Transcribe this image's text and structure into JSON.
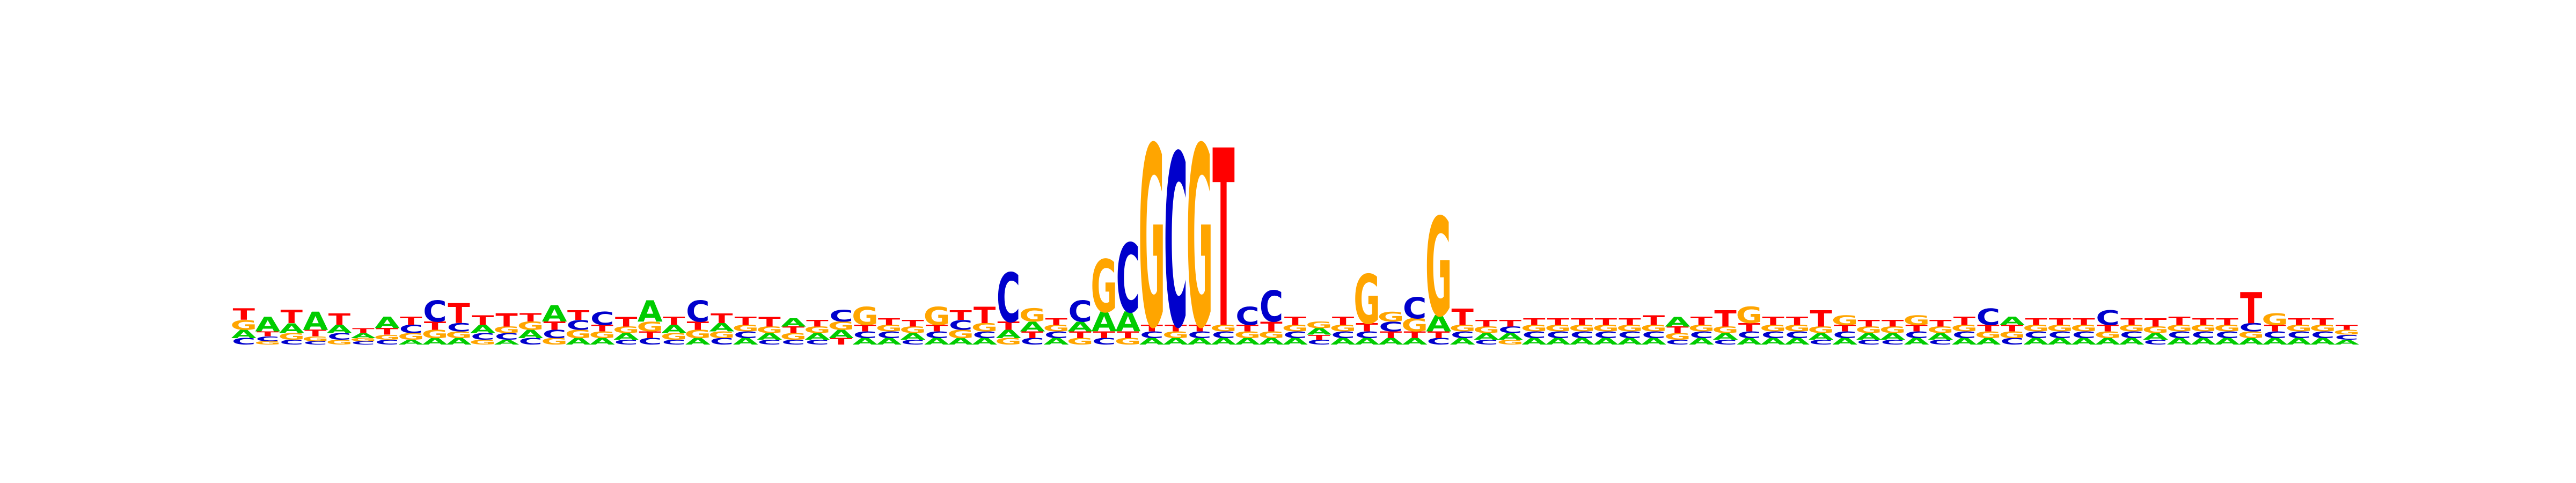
{
  "chart_data": {
    "type": "sequence-logo",
    "alphabet": [
      "A",
      "C",
      "G",
      "T"
    ],
    "colors": {
      "A": "#00cc00",
      "C": "#0000cc",
      "G": "#ffa500",
      "T": "#ff0000"
    },
    "y_unit": "bits",
    "ylim": [
      0,
      2
    ],
    "positions": [
      {
        "A": 0.05,
        "C": 0.04,
        "G": 0.06,
        "T": 0.07
      },
      {
        "A": 0.09,
        "C": 0.03,
        "G": 0.02,
        "T": 0.03
      },
      {
        "A": 0.06,
        "C": 0.03,
        "G": 0.04,
        "T": 0.08
      },
      {
        "A": 0.11,
        "C": 0.02,
        "G": 0.03,
        "T": 0.04
      },
      {
        "A": 0.05,
        "C": 0.04,
        "G": 0.03,
        "T": 0.07
      },
      {
        "A": 0.03,
        "C": 0.02,
        "G": 0.02,
        "T": 0.03
      },
      {
        "A": 0.07,
        "C": 0.03,
        "G": 0.03,
        "T": 0.04
      },
      {
        "A": 0.03,
        "C": 0.05,
        "G": 0.04,
        "T": 0.05
      },
      {
        "A": 0.04,
        "C": 0.13,
        "G": 0.05,
        "T": 0.05
      },
      {
        "A": 0.04,
        "C": 0.05,
        "G": 0.04,
        "T": 0.12
      },
      {
        "A": 0.05,
        "C": 0.04,
        "G": 0.03,
        "T": 0.06
      },
      {
        "A": 0.03,
        "C": 0.04,
        "G": 0.04,
        "T": 0.08
      },
      {
        "A": 0.05,
        "C": 0.04,
        "G": 0.05,
        "T": 0.05
      },
      {
        "A": 0.1,
        "C": 0.05,
        "G": 0.04,
        "T": 0.05
      },
      {
        "A": 0.04,
        "C": 0.06,
        "G": 0.05,
        "T": 0.06
      },
      {
        "A": 0.04,
        "C": 0.08,
        "G": 0.04,
        "T": 0.04
      },
      {
        "A": 0.04,
        "C": 0.03,
        "G": 0.04,
        "T": 0.06
      },
      {
        "A": 0.13,
        "C": 0.04,
        "G": 0.06,
        "T": 0.04
      },
      {
        "A": 0.05,
        "C": 0.03,
        "G": 0.04,
        "T": 0.05
      },
      {
        "A": 0.04,
        "C": 0.13,
        "G": 0.05,
        "T": 0.05
      },
      {
        "A": 0.05,
        "C": 0.04,
        "G": 0.04,
        "T": 0.06
      },
      {
        "A": 0.04,
        "C": 0.04,
        "G": 0.04,
        "T": 0.05
      },
      {
        "A": 0.04,
        "C": 0.03,
        "G": 0.04,
        "T": 0.06
      },
      {
        "A": 0.05,
        "C": 0.03,
        "G": 0.04,
        "T": 0.04
      },
      {
        "A": 0.04,
        "C": 0.03,
        "G": 0.04,
        "T": 0.04
      },
      {
        "A": 0.05,
        "C": 0.07,
        "G": 0.05,
        "T": 0.04
      },
      {
        "A": 0.04,
        "C": 0.04,
        "G": 0.11,
        "T": 0.04
      },
      {
        "A": 0.04,
        "C": 0.04,
        "G": 0.04,
        "T": 0.04
      },
      {
        "A": 0.04,
        "C": 0.03,
        "G": 0.04,
        "T": 0.04
      },
      {
        "A": 0.04,
        "C": 0.04,
        "G": 0.11,
        "T": 0.04
      },
      {
        "A": 0.04,
        "C": 0.06,
        "G": 0.05,
        "T": 0.06
      },
      {
        "A": 0.04,
        "C": 0.04,
        "G": 0.05,
        "T": 0.1
      },
      {
        "A": 0.05,
        "C": 0.3,
        "G": 0.04,
        "T": 0.05
      },
      {
        "A": 0.06,
        "C": 0.04,
        "G": 0.08,
        "T": 0.04
      },
      {
        "A": 0.04,
        "C": 0.04,
        "G": 0.04,
        "T": 0.04
      },
      {
        "A": 0.06,
        "C": 0.13,
        "G": 0.04,
        "T": 0.04
      },
      {
        "A": 0.12,
        "C": 0.04,
        "G": 0.32,
        "T": 0.04
      },
      {
        "A": 0.12,
        "C": 0.42,
        "G": 0.04,
        "T": 0.04
      },
      {
        "A": 0.04,
        "C": 0.04,
        "G": 1.1,
        "T": 0.04
      },
      {
        "A": 0.04,
        "C": 1.05,
        "G": 0.04,
        "T": 0.04
      },
      {
        "A": 0.04,
        "C": 0.04,
        "G": 1.1,
        "T": 0.04
      },
      {
        "A": 0.04,
        "C": 0.04,
        "G": 0.04,
        "T": 1.08
      },
      {
        "A": 0.04,
        "C": 0.11,
        "G": 0.04,
        "T": 0.04
      },
      {
        "A": 0.04,
        "C": 0.19,
        "G": 0.04,
        "T": 0.06
      },
      {
        "A": 0.04,
        "C": 0.04,
        "G": 0.04,
        "T": 0.05
      },
      {
        "A": 0.04,
        "C": 0.03,
        "G": 0.04,
        "T": 0.03
      },
      {
        "A": 0.04,
        "C": 0.04,
        "G": 0.04,
        "T": 0.05
      },
      {
        "A": 0.04,
        "C": 0.04,
        "G": 0.3,
        "T": 0.05
      },
      {
        "A": 0.04,
        "C": 0.06,
        "G": 0.06,
        "T": 0.04
      },
      {
        "A": 0.04,
        "C": 0.13,
        "G": 0.08,
        "T": 0.04
      },
      {
        "A": 0.1,
        "C": 0.04,
        "G": 0.6,
        "T": 0.04
      },
      {
        "A": 0.04,
        "C": 0.04,
        "G": 0.04,
        "T": 0.1
      },
      {
        "A": 0.04,
        "C": 0.03,
        "G": 0.04,
        "T": 0.04
      },
      {
        "A": 0.04,
        "C": 0.04,
        "G": 0.03,
        "T": 0.04
      },
      {
        "A": 0.04,
        "C": 0.04,
        "G": 0.04,
        "T": 0.04
      },
      {
        "A": 0.04,
        "C": 0.04,
        "G": 0.04,
        "T": 0.04
      },
      {
        "A": 0.04,
        "C": 0.04,
        "G": 0.04,
        "T": 0.04
      },
      {
        "A": 0.04,
        "C": 0.04,
        "G": 0.04,
        "T": 0.04
      },
      {
        "A": 0.04,
        "C": 0.04,
        "G": 0.04,
        "T": 0.04
      },
      {
        "A": 0.04,
        "C": 0.04,
        "G": 0.04,
        "T": 0.06
      },
      {
        "A": 0.06,
        "C": 0.03,
        "G": 0.04,
        "T": 0.04
      },
      {
        "A": 0.04,
        "C": 0.04,
        "G": 0.04,
        "T": 0.05
      },
      {
        "A": 0.04,
        "C": 0.03,
        "G": 0.04,
        "T": 0.1
      },
      {
        "A": 0.04,
        "C": 0.04,
        "G": 0.1,
        "T": 0.05
      },
      {
        "A": 0.04,
        "C": 0.04,
        "G": 0.04,
        "T": 0.05
      },
      {
        "A": 0.04,
        "C": 0.04,
        "G": 0.04,
        "T": 0.05
      },
      {
        "A": 0.04,
        "C": 0.03,
        "G": 0.04,
        "T": 0.1
      },
      {
        "A": 0.04,
        "C": 0.04,
        "G": 0.06,
        "T": 0.04
      },
      {
        "A": 0.04,
        "C": 0.03,
        "G": 0.04,
        "T": 0.04
      },
      {
        "A": 0.04,
        "C": 0.03,
        "G": 0.04,
        "T": 0.04
      },
      {
        "A": 0.04,
        "C": 0.04,
        "G": 0.06,
        "T": 0.04
      },
      {
        "A": 0.04,
        "C": 0.03,
        "G": 0.04,
        "T": 0.04
      },
      {
        "A": 0.04,
        "C": 0.04,
        "G": 0.04,
        "T": 0.05
      },
      {
        "A": 0.04,
        "C": 0.1,
        "G": 0.04,
        "T": 0.04
      },
      {
        "A": 0.05,
        "C": 0.04,
        "G": 0.04,
        "T": 0.04
      },
      {
        "A": 0.04,
        "C": 0.04,
        "G": 0.04,
        "T": 0.04
      },
      {
        "A": 0.04,
        "C": 0.04,
        "G": 0.04,
        "T": 0.04
      },
      {
        "A": 0.04,
        "C": 0.04,
        "G": 0.04,
        "T": 0.04
      },
      {
        "A": 0.04,
        "C": 0.09,
        "G": 0.04,
        "T": 0.04
      },
      {
        "A": 0.04,
        "C": 0.04,
        "G": 0.04,
        "T": 0.04
      },
      {
        "A": 0.04,
        "C": 0.03,
        "G": 0.04,
        "T": 0.05
      },
      {
        "A": 0.04,
        "C": 0.04,
        "G": 0.04,
        "T": 0.05
      },
      {
        "A": 0.04,
        "C": 0.04,
        "G": 0.04,
        "T": 0.04
      },
      {
        "A": 0.04,
        "C": 0.04,
        "G": 0.04,
        "T": 0.04
      },
      {
        "A": 0.04,
        "C": 0.05,
        "G": 0.04,
        "T": 0.19
      },
      {
        "A": 0.04,
        "C": 0.04,
        "G": 0.07,
        "T": 0.04
      },
      {
        "A": 0.04,
        "C": 0.04,
        "G": 0.04,
        "T": 0.04
      },
      {
        "A": 0.04,
        "C": 0.04,
        "G": 0.04,
        "T": 0.04
      },
      {
        "A": 0.03,
        "C": 0.03,
        "G": 0.03,
        "T": 0.03
      }
    ]
  }
}
